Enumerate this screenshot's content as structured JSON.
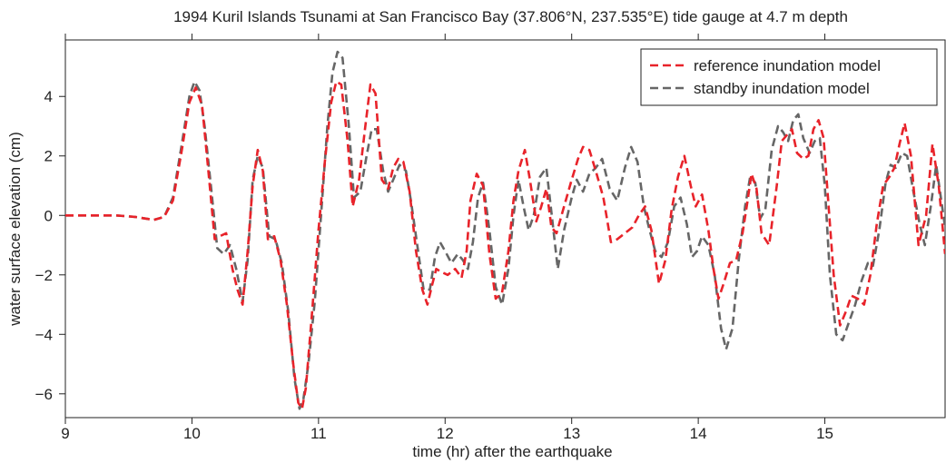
{
  "chart_data": {
    "type": "line",
    "title": "1994 Kuril Islands Tsunami at San Francisco Bay  (37.806°N, 237.535°E) tide gauge at 4.7 m depth",
    "xlabel": "time (hr) after the earthquake",
    "ylabel": "water surface elevation (cm)",
    "xlim": [
      9,
      15.95
    ],
    "ylim": [
      -6.8,
      5.9
    ],
    "xticks": [
      9,
      10,
      11,
      12,
      13,
      14,
      15
    ],
    "yticks": [
      -6,
      -4,
      -2,
      0,
      2,
      4
    ],
    "xtick_labels": [
      "9",
      "10",
      "11",
      "12",
      "13",
      "14",
      "15"
    ],
    "ytick_labels": [
      "−6",
      "−4",
      "−2",
      "0",
      "2",
      "4"
    ],
    "grid": false,
    "legend_position": "top-right",
    "series": [
      {
        "name": "reference inundation model",
        "color": "#e8232a",
        "dash": "dashed",
        "x": [
          9.0,
          9.2,
          9.4,
          9.55,
          9.7,
          9.78,
          9.85,
          9.92,
          9.98,
          10.03,
          10.08,
          10.13,
          10.18,
          10.22,
          10.27,
          10.32,
          10.36,
          10.4,
          10.44,
          10.48,
          10.52,
          10.56,
          10.6,
          10.65,
          10.7,
          10.75,
          10.8,
          10.84,
          10.87,
          10.9,
          10.95,
          11.0,
          11.05,
          11.1,
          11.14,
          11.18,
          11.23,
          11.27,
          11.32,
          11.37,
          11.41,
          11.45,
          11.5,
          11.55,
          11.59,
          11.63,
          11.67,
          11.72,
          11.77,
          11.82,
          11.86,
          11.9,
          11.93,
          11.97,
          12.02,
          12.08,
          12.13,
          12.17,
          12.2,
          12.25,
          12.3,
          12.35,
          12.4,
          12.45,
          12.5,
          12.54,
          12.58,
          12.63,
          12.67,
          12.72,
          12.76,
          12.8,
          12.84,
          12.88,
          12.94,
          13.0,
          13.05,
          13.09,
          13.14,
          13.19,
          13.25,
          13.31,
          13.36,
          13.42,
          13.48,
          13.53,
          13.58,
          13.63,
          13.69,
          13.74,
          13.79,
          13.84,
          13.89,
          13.94,
          13.98,
          14.03,
          14.08,
          14.12,
          14.16,
          14.2,
          14.25,
          14.3,
          14.35,
          14.39,
          14.42,
          14.46,
          14.5,
          14.56,
          14.62,
          14.66,
          14.7,
          14.74,
          14.78,
          14.83,
          14.87,
          14.91,
          14.95,
          14.99,
          15.03,
          15.07,
          15.12,
          15.17,
          15.21,
          15.26,
          15.31,
          15.36,
          15.41,
          15.46,
          15.51,
          15.55,
          15.59,
          15.63,
          15.68,
          15.74,
          15.8,
          15.85,
          15.9,
          15.95
        ],
        "y": [
          0.0,
          0.0,
          0.0,
          -0.05,
          -0.15,
          -0.05,
          0.5,
          2.2,
          3.8,
          4.3,
          3.7,
          1.5,
          -0.8,
          -0.7,
          -0.6,
          -1.8,
          -2.5,
          -3.0,
          -1.2,
          1.0,
          2.2,
          1.5,
          -0.8,
          -0.7,
          -1.5,
          -3.0,
          -5.0,
          -6.3,
          -6.5,
          -5.8,
          -3.2,
          -0.5,
          1.8,
          3.8,
          4.5,
          4.4,
          2.5,
          0.3,
          1.2,
          3.0,
          4.4,
          4.1,
          1.2,
          0.9,
          1.6,
          1.9,
          1.8,
          0.8,
          -1.2,
          -2.5,
          -3.0,
          -2.3,
          -1.8,
          -1.9,
          -2.0,
          -1.8,
          -2.1,
          -1.2,
          0.5,
          1.4,
          1.0,
          -1.3,
          -2.8,
          -2.6,
          -1.2,
          0.5,
          1.5,
          2.2,
          1.2,
          -0.2,
          0.3,
          0.9,
          -0.4,
          -0.6,
          0.3,
          1.2,
          1.9,
          2.3,
          2.2,
          1.5,
          0.6,
          -0.9,
          -0.8,
          -0.6,
          -0.4,
          0.0,
          0.3,
          -0.5,
          -2.3,
          -1.5,
          0.2,
          1.3,
          2.0,
          1.0,
          0.3,
          0.7,
          -0.5,
          -1.8,
          -2.8,
          -2.3,
          -1.6,
          -1.5,
          -0.6,
          0.5,
          1.4,
          0.9,
          -0.6,
          -1.0,
          1.0,
          2.5,
          2.7,
          2.9,
          2.1,
          1.9,
          2.0,
          2.9,
          3.2,
          2.6,
          0.3,
          -2.0,
          -3.7,
          -3.2,
          -2.7,
          -2.8,
          -3.0,
          -2.0,
          -0.3,
          1.0,
          1.3,
          1.6,
          2.4,
          3.1,
          2.0,
          -1.0,
          0.0,
          2.4,
          1.0,
          -1.3
        ]
      },
      {
        "name": "standby inundation model",
        "color": "#666666",
        "dash": "dashed",
        "x": [
          9.0,
          9.2,
          9.4,
          9.55,
          9.7,
          9.78,
          9.85,
          9.92,
          9.98,
          10.02,
          10.06,
          10.1,
          10.15,
          10.2,
          10.25,
          10.3,
          10.35,
          10.4,
          10.44,
          10.48,
          10.52,
          10.56,
          10.61,
          10.66,
          10.71,
          10.76,
          10.81,
          10.85,
          10.88,
          10.92,
          10.97,
          11.02,
          11.07,
          11.11,
          11.15,
          11.19,
          11.24,
          11.28,
          11.33,
          11.38,
          11.42,
          11.46,
          11.51,
          11.55,
          11.6,
          11.64,
          11.69,
          11.73,
          11.78,
          11.83,
          11.88,
          11.92,
          11.96,
          12.0,
          12.05,
          12.1,
          12.14,
          12.18,
          12.22,
          12.26,
          12.3,
          12.35,
          12.4,
          12.45,
          12.5,
          12.54,
          12.58,
          12.62,
          12.66,
          12.7,
          12.75,
          12.8,
          12.84,
          12.89,
          12.94,
          13.0,
          13.04,
          13.09,
          13.14,
          13.19,
          13.24,
          13.3,
          13.36,
          13.42,
          13.47,
          13.52,
          13.57,
          13.61,
          13.66,
          13.71,
          13.76,
          13.81,
          13.86,
          13.91,
          13.95,
          13.99,
          14.03,
          14.08,
          14.13,
          14.18,
          14.22,
          14.27,
          14.32,
          14.37,
          14.41,
          14.45,
          14.49,
          14.53,
          14.58,
          14.63,
          14.67,
          14.71,
          14.75,
          14.79,
          14.83,
          14.88,
          14.92,
          14.96,
          15.0,
          15.04,
          15.09,
          15.14,
          15.19,
          15.24,
          15.29,
          15.34,
          15.38,
          15.43,
          15.48,
          15.52,
          15.56,
          15.61,
          15.65,
          15.7,
          15.75,
          15.79,
          15.84,
          15.88,
          15.95
        ],
        "y": [
          0.0,
          0.0,
          0.0,
          -0.05,
          -0.15,
          -0.05,
          0.6,
          2.4,
          4.0,
          4.5,
          4.2,
          3.0,
          1.0,
          -1.1,
          -1.3,
          -1.0,
          -1.8,
          -2.9,
          -1.5,
          1.2,
          2.0,
          1.6,
          -0.7,
          -0.8,
          -1.6,
          -3.2,
          -5.5,
          -6.5,
          -6.2,
          -5.0,
          -2.9,
          0.0,
          3.0,
          4.8,
          5.5,
          5.3,
          3.0,
          0.6,
          0.8,
          2.0,
          2.9,
          2.9,
          1.5,
          0.8,
          1.3,
          1.7,
          1.5,
          0.5,
          -1.0,
          -2.5,
          -2.5,
          -1.4,
          -0.9,
          -1.2,
          -1.6,
          -1.3,
          -1.5,
          -1.8,
          -0.9,
          0.6,
          1.1,
          -0.5,
          -2.4,
          -3.0,
          -1.8,
          0.0,
          1.2,
          0.3,
          -0.5,
          0.0,
          1.3,
          1.6,
          0.1,
          -1.8,
          -0.5,
          0.6,
          1.2,
          0.8,
          1.4,
          1.6,
          1.9,
          0.9,
          0.5,
          1.6,
          2.3,
          1.8,
          0.3,
          -0.4,
          -1.2,
          -1.4,
          -0.9,
          0.3,
          0.6,
          -0.3,
          -1.4,
          -1.2,
          -0.7,
          -1.0,
          -2.0,
          -3.8,
          -4.5,
          -3.8,
          -1.5,
          0.3,
          1.3,
          1.1,
          -0.1,
          0.2,
          2.2,
          3.0,
          2.8,
          2.5,
          3.2,
          3.4,
          2.6,
          2.1,
          2.5,
          2.6,
          1.0,
          -2.0,
          -4.0,
          -4.2,
          -3.6,
          -3.0,
          -2.2,
          -1.6,
          -1.7,
          -0.5,
          1.1,
          1.7,
          1.6,
          2.1,
          2.0,
          0.8,
          -0.3,
          -1.0,
          0.4,
          1.7,
          -0.4
        ]
      }
    ]
  }
}
